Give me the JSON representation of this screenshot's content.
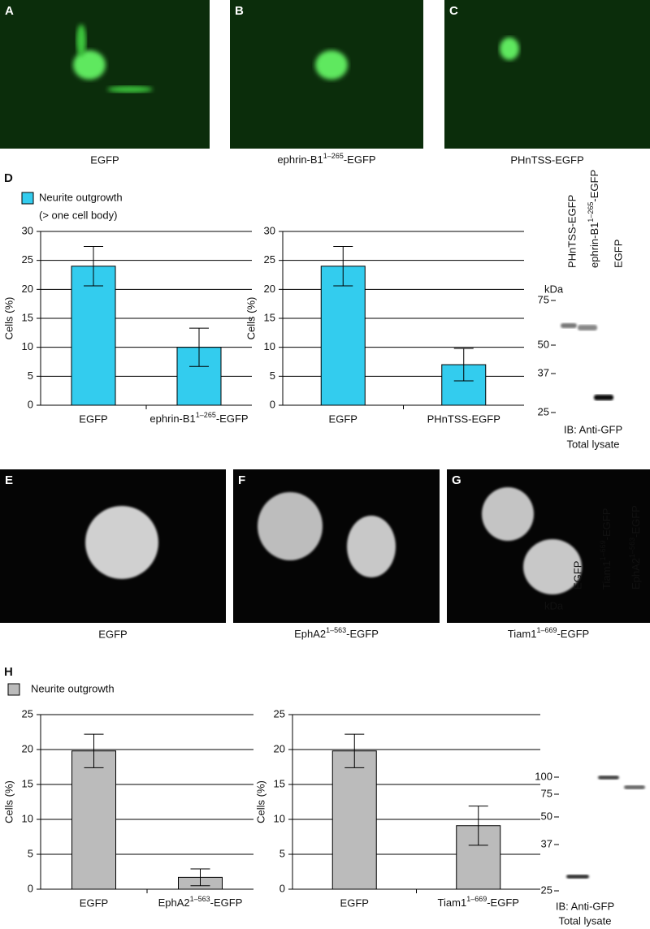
{
  "image_panels": [
    {
      "letter": "A",
      "caption": "EGFP"
    },
    {
      "letter": "B",
      "caption": {
        "text": "ephrin-B1",
        "sup": "1–265",
        "suffix": "-EGFP"
      }
    },
    {
      "letter": "C",
      "caption": "PHnTSS-EGFP"
    },
    {
      "letter": "E",
      "caption": "EGFP"
    },
    {
      "letter": "F",
      "caption": {
        "text": "EphA2",
        "sup": "1–563",
        "suffix": "-EGFP"
      }
    },
    {
      "letter": "G",
      "caption": {
        "text": "Tiam1",
        "sup": "1–669",
        "suffix": "-EGFP"
      }
    }
  ],
  "section_labels": [
    "D",
    "H"
  ],
  "legends": [
    {
      "label": "Neurite outgrowth",
      "note": "(> one cell body)",
      "color": "#33ccee"
    },
    {
      "label": "Neurite outgrowth",
      "color": "#bbbbbb"
    }
  ],
  "chart_data": [
    {
      "type": "bar",
      "ylabel": "Cells (%)",
      "categories": [
        "EGFP",
        {
          "text": "ephrin-B1",
          "sup": "1–265",
          "suffix": "-EGFP"
        }
      ],
      "values": [
        24,
        10
      ],
      "errors": [
        3.4,
        3.3
      ],
      "color": "#33ccee",
      "ylim": [
        0,
        30
      ],
      "yticks": [
        0,
        5,
        10,
        15,
        20,
        25,
        30
      ],
      "grid": true
    },
    {
      "type": "bar",
      "ylabel": "Cells (%)",
      "categories": [
        "EGFP",
        "PHnTSS-EGFP"
      ],
      "values": [
        24,
        7
      ],
      "errors": [
        3.4,
        2.8
      ],
      "color": "#33ccee",
      "ylim": [
        0,
        30
      ],
      "yticks": [
        0,
        5,
        10,
        15,
        20,
        25,
        30
      ],
      "grid": true
    },
    {
      "type": "bar",
      "ylabel": "Cells (%)",
      "categories": [
        "EGFP",
        {
          "text": "EphA2",
          "sup": "1–563",
          "suffix": "-EGFP"
        }
      ],
      "values": [
        19.8,
        1.7
      ],
      "errors": [
        2.4,
        1.2
      ],
      "color": "#bbbbbb",
      "ylim": [
        0,
        25
      ],
      "yticks": [
        0,
        5,
        10,
        15,
        20,
        25
      ],
      "grid": true
    },
    {
      "type": "bar",
      "ylabel": "Cells (%)",
      "categories": [
        "EGFP",
        {
          "text": "Tiam1",
          "sup": "1–669",
          "suffix": "-EGFP"
        }
      ],
      "values": [
        19.8,
        9.1
      ],
      "errors": [
        2.4,
        2.8
      ],
      "color": "#bbbbbb",
      "ylim": [
        0,
        25
      ],
      "yticks": [
        0,
        5,
        10,
        15,
        20,
        25
      ],
      "grid": true
    }
  ],
  "blots": [
    {
      "lanes": [
        "PHnTSS-EGFP",
        {
          "text": "ephrin-B1",
          "sup": "1–265",
          "suffix": "-EGFP"
        },
        "EGFP"
      ],
      "unit": "kDa",
      "markers": [
        75,
        50,
        37,
        25
      ],
      "footer": [
        "IB: Anti-GFP",
        "Total lysate"
      ]
    },
    {
      "lanes": [
        "EGFP",
        {
          "text": "Tiam1",
          "sup": "1–669",
          "suffix": "-EGFP"
        },
        {
          "text": "EphA2",
          "sup": "1–563",
          "suffix": "-EGFP"
        }
      ],
      "unit": "kDa",
      "markers": [
        100,
        75,
        50,
        37,
        25
      ],
      "footer": [
        "IB: Anti-GFP",
        "Total lysate"
      ]
    }
  ]
}
